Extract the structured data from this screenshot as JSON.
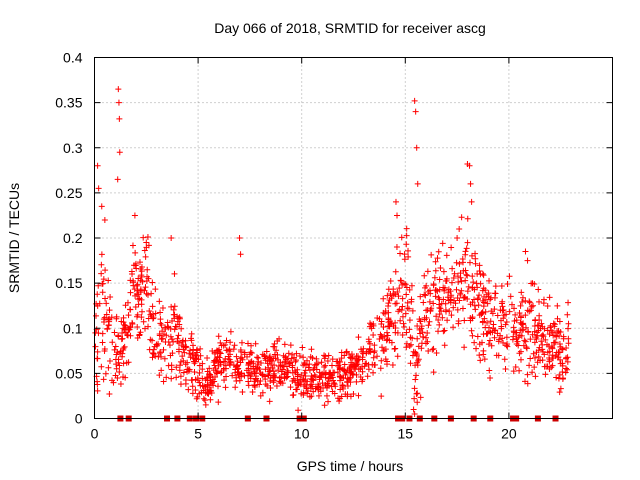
{
  "chart_data": {
    "type": "scatter",
    "title": "Day 066 of 2018, SRMTID for receiver ascg",
    "xlabel": "GPS time / hours",
    "ylabel": "SRMTID / TECUs",
    "xlim": [
      0,
      25
    ],
    "ylim": [
      0,
      0.4
    ],
    "grid": true,
    "series_color": "#ff0000",
    "x_ticks": [
      0,
      5,
      10,
      15,
      20
    ],
    "x_tick_labels": [
      "0",
      "5",
      "10",
      "15",
      "20"
    ],
    "y_ticks": [
      0,
      0.05,
      0.1,
      0.15,
      0.2,
      0.25,
      0.3,
      0.35,
      0.4
    ],
    "y_tick_labels": [
      "0",
      "0.05",
      "0.1",
      "0.15",
      "0.2",
      "0.25",
      "0.3",
      "0.35",
      "0.4"
    ],
    "envelope": {
      "description": "approximate SRMTID level vs time (hours) read from the point cloud",
      "x": [
        0.0,
        0.3,
        0.6,
        0.9,
        1.2,
        1.5,
        1.8,
        2.2,
        2.6,
        3.0,
        3.4,
        3.8,
        4.2,
        4.6,
        5.0,
        5.5,
        6.0,
        7.0,
        8.0,
        9.0,
        10.0,
        11.0,
        12.0,
        13.0,
        13.8,
        14.3,
        14.8,
        15.2,
        15.5,
        15.8,
        16.2,
        16.6,
        17.0,
        17.5,
        18.0,
        18.5,
        19.0,
        19.5,
        20.0,
        20.5,
        21.0,
        21.5,
        22.0,
        22.5,
        22.9
      ],
      "y": [
        0.06,
        0.12,
        0.1,
        0.07,
        0.08,
        0.09,
        0.14,
        0.13,
        0.15,
        0.08,
        0.07,
        0.1,
        0.08,
        0.06,
        0.05,
        0.04,
        0.06,
        0.06,
        0.05,
        0.055,
        0.045,
        0.045,
        0.05,
        0.06,
        0.08,
        0.11,
        0.14,
        0.12,
        0.05,
        0.1,
        0.12,
        0.13,
        0.14,
        0.13,
        0.16,
        0.12,
        0.11,
        0.1,
        0.11,
        0.09,
        0.1,
        0.09,
        0.09,
        0.07,
        0.08
      ],
      "spread": [
        0.03,
        0.06,
        0.05,
        0.03,
        0.03,
        0.03,
        0.05,
        0.04,
        0.04,
        0.03,
        0.03,
        0.04,
        0.03,
        0.025,
        0.02,
        0.02,
        0.02,
        0.02,
        0.02,
        0.02,
        0.02,
        0.02,
        0.02,
        0.02,
        0.03,
        0.04,
        0.05,
        0.05,
        0.04,
        0.04,
        0.04,
        0.04,
        0.04,
        0.04,
        0.05,
        0.04,
        0.04,
        0.03,
        0.03,
        0.03,
        0.04,
        0.03,
        0.04,
        0.03,
        0.03
      ]
    },
    "peaks": [
      {
        "x": 0.15,
        "y": 0.28
      },
      {
        "x": 0.2,
        "y": 0.255
      },
      {
        "x": 0.35,
        "y": 0.235
      },
      {
        "x": 0.5,
        "y": 0.22
      },
      {
        "x": 1.15,
        "y": 0.365
      },
      {
        "x": 1.18,
        "y": 0.35
      },
      {
        "x": 1.2,
        "y": 0.332
      },
      {
        "x": 1.22,
        "y": 0.295
      },
      {
        "x": 1.12,
        "y": 0.265
      },
      {
        "x": 1.95,
        "y": 0.225
      },
      {
        "x": 2.5,
        "y": 0.195
      },
      {
        "x": 3.7,
        "y": 0.2
      },
      {
        "x": 7.0,
        "y": 0.2
      },
      {
        "x": 7.05,
        "y": 0.182
      },
      {
        "x": 14.55,
        "y": 0.24
      },
      {
        "x": 14.6,
        "y": 0.225
      },
      {
        "x": 15.45,
        "y": 0.352
      },
      {
        "x": 15.5,
        "y": 0.34
      },
      {
        "x": 15.55,
        "y": 0.3
      },
      {
        "x": 15.6,
        "y": 0.26
      },
      {
        "x": 15.4,
        "y": 0.01
      },
      {
        "x": 15.45,
        "y": 0.005
      },
      {
        "x": 17.5,
        "y": 0.2
      },
      {
        "x": 17.6,
        "y": 0.21
      },
      {
        "x": 18.0,
        "y": 0.282
      },
      {
        "x": 18.1,
        "y": 0.28
      },
      {
        "x": 18.15,
        "y": 0.26
      },
      {
        "x": 18.2,
        "y": 0.24
      },
      {
        "x": 20.8,
        "y": 0.185
      },
      {
        "x": 20.9,
        "y": 0.175
      }
    ],
    "gap_markers_x": [
      1.25,
      1.65,
      3.5,
      4.0,
      4.6,
      4.9,
      5.2,
      7.4,
      8.3,
      9.9,
      10.1,
      14.65,
      14.85,
      15.2,
      15.7,
      16.4,
      17.2,
      18.3,
      19.1,
      20.2,
      20.35,
      21.4,
      22.25
    ]
  }
}
